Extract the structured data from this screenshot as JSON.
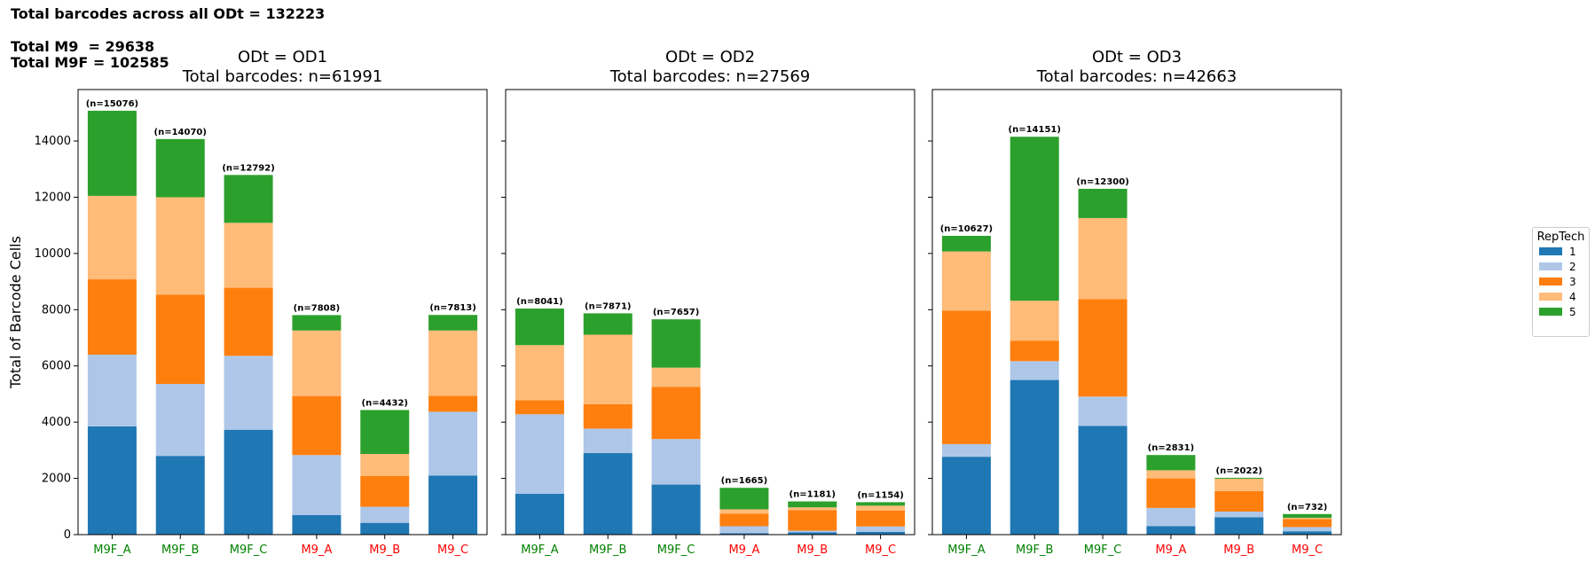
{
  "header": {
    "line1": "Total barcodes across all ODt = 132223",
    "line2": "Total M9  = 29638",
    "line3": "Total M9F = 102585"
  },
  "colors": {
    "rep1": "#1f77b4",
    "rep2": "#aec7e8",
    "rep3": "#ff7f0e",
    "rep4": "#ffbb78",
    "rep5": "#2ca02c",
    "m9f_label": "#008000",
    "m9_label": "#ff0000"
  },
  "legend": {
    "title": "RepTech",
    "items": [
      "1",
      "2",
      "3",
      "4",
      "5"
    ]
  },
  "chart_data": [
    {
      "type": "bar",
      "stacked": true,
      "title": "ODt = OD1\nTotal barcodes: n=61991",
      "ylabel": "Total of Barcode Cells",
      "xlabel": "",
      "ylim": [
        0,
        15830
      ],
      "yticks": [
        0,
        2000,
        4000,
        6000,
        8000,
        10000,
        12000,
        14000
      ],
      "categories": [
        "M9F_A",
        "M9F_B",
        "M9F_C",
        "M9_A",
        "M9_B",
        "M9_C"
      ],
      "totals_labels": [
        "(n=15076)",
        "(n=14070)",
        "(n=12792)",
        "(n=7808)",
        "(n=4432)",
        "(n=7813)"
      ],
      "series": [
        {
          "name": "1",
          "values": [
            3850,
            2800,
            3730,
            700,
            420,
            2100
          ]
        },
        {
          "name": "2",
          "values": [
            2550,
            2560,
            2630,
            2130,
            570,
            2270
          ]
        },
        {
          "name": "3",
          "values": [
            2680,
            3170,
            2420,
            2100,
            1100,
            570
          ]
        },
        {
          "name": "4",
          "values": [
            2970,
            3470,
            2310,
            2330,
            780,
            2320
          ]
        },
        {
          "name": "5",
          "values": [
            3026,
            2070,
            1702,
            548,
            1562,
            553
          ]
        }
      ]
    },
    {
      "type": "bar",
      "stacked": true,
      "title": "ODt = OD2\nTotal barcodes: n=27569",
      "ylim": [
        0,
        15830
      ],
      "categories": [
        "M9F_A",
        "M9F_B",
        "M9F_C",
        "M9_A",
        "M9_B",
        "M9_C"
      ],
      "totals_labels": [
        "(n=8041)",
        "(n=7871)",
        "(n=7657)",
        "(n=1665)",
        "(n=1181)",
        "(n=1154)"
      ],
      "series": [
        {
          "name": "1",
          "values": [
            1450,
            2900,
            1780,
            50,
            80,
            100
          ]
        },
        {
          "name": "2",
          "values": [
            2830,
            870,
            1620,
            250,
            60,
            190
          ]
        },
        {
          "name": "3",
          "values": [
            500,
            870,
            1860,
            450,
            730,
            570
          ]
        },
        {
          "name": "4",
          "values": [
            1960,
            2470,
            680,
            150,
            100,
            170
          ]
        },
        {
          "name": "5",
          "values": [
            1301,
            761,
            1717,
            765,
            211,
            124
          ]
        }
      ]
    },
    {
      "type": "bar",
      "stacked": true,
      "title": "ODt = OD3\nTotal barcodes: n=42663",
      "ylim": [
        0,
        15830
      ],
      "categories": [
        "M9F_A",
        "M9F_B",
        "M9F_C",
        "M9_A",
        "M9_B",
        "M9_C"
      ],
      "totals_labels": [
        "(n=10627)",
        "(n=14151)",
        "(n=12300)",
        "(n=2831)",
        "(n=2022)",
        "(n=732)"
      ],
      "series": [
        {
          "name": "1",
          "values": [
            2770,
            5500,
            3870,
            300,
            620,
            120
          ]
        },
        {
          "name": "2",
          "values": [
            450,
            670,
            1040,
            650,
            200,
            150
          ]
        },
        {
          "name": "3",
          "values": [
            4750,
            730,
            3470,
            1050,
            730,
            280
          ]
        },
        {
          "name": "4",
          "values": [
            2100,
            1420,
            2880,
            290,
            440,
            50
          ]
        },
        {
          "name": "5",
          "values": [
            557,
            5831,
            1040,
            541,
            32,
            132
          ]
        }
      ]
    }
  ]
}
